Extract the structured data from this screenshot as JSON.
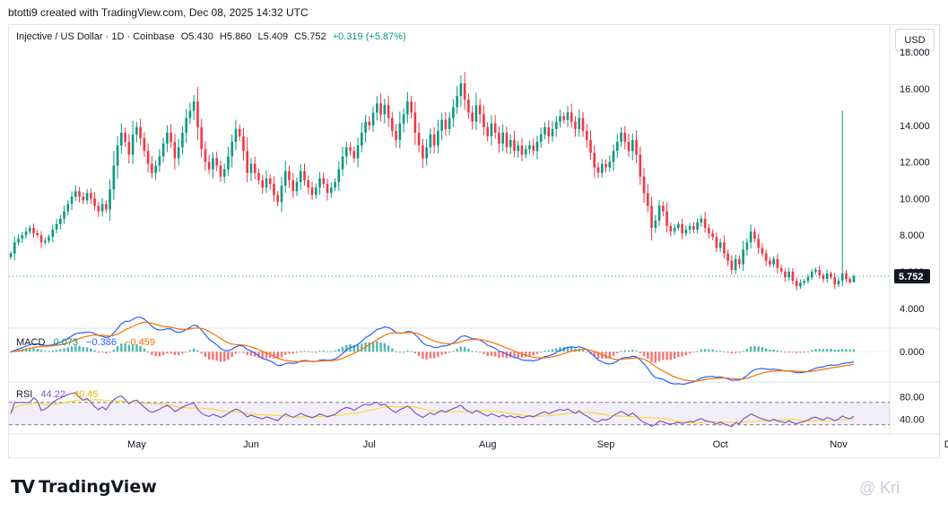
{
  "header": {
    "credit": "btotti9 created with TradingView.com, Dec 08, 2025 14:32 UTC"
  },
  "legend": {
    "symbol": "Injective / US Dollar · 1D · Coinbase",
    "open": "O5.430",
    "high": "H5.860",
    "low": "L5.409",
    "close": "C5.752",
    "change": "+0.319 (+5.87%)"
  },
  "currency_button": "USD",
  "macd_legend": {
    "label": "MACD",
    "v1": "0.073",
    "v2": "−0.386",
    "v3": "−0.459"
  },
  "rsi_legend": {
    "label": "RSI",
    "v1": "44.22",
    "v2": "40.45"
  },
  "footer": {
    "brand": "TradingView",
    "watermark": "@ Kri"
  },
  "colors": {
    "up": "#089981",
    "down": "#f23645",
    "macd": "#2962ff",
    "signal": "#ff6d00",
    "rsi": "#7e57c2",
    "rsi_ma": "#fdd835"
  },
  "chart_data": [
    {
      "type": "candlestick",
      "title": "Injective / US Dollar · 1D · Coinbase",
      "y_ticks": [
        4,
        6,
        8,
        10,
        12,
        14,
        16,
        18
      ],
      "y_tick_labels": [
        "4.000",
        "6.000",
        "8.000",
        "10.000",
        "12.000",
        "14.000",
        "16.000",
        "18.000"
      ],
      "ylim": [
        3.6,
        18.4
      ],
      "x_tick_labels": [
        "May",
        "Jun",
        "Jul",
        "Aug",
        "Sep",
        "Oct",
        "Nov",
        "Dec"
      ],
      "x_tick_index": [
        33,
        63,
        94,
        125,
        156,
        186,
        217,
        247
      ],
      "last_price": 5.752,
      "last_price_label": "5.752",
      "closes": [
        7.0,
        7.6,
        7.8,
        8.0,
        8.2,
        8.4,
        8.1,
        8.0,
        7.6,
        7.7,
        7.9,
        8.3,
        8.6,
        8.9,
        9.3,
        9.7,
        10.1,
        10.4,
        10.1,
        9.9,
        10.3,
        10.0,
        9.6,
        9.3,
        9.7,
        9.4,
        10.5,
        11.8,
        12.9,
        13.6,
        13.1,
        12.4,
        13.5,
        13.9,
        13.3,
        12.6,
        11.9,
        11.4,
        11.8,
        12.3,
        13.0,
        13.6,
        13.1,
        12.2,
        12.8,
        13.6,
        14.4,
        14.8,
        15.3,
        13.9,
        12.7,
        12.0,
        11.6,
        12.2,
        11.8,
        11.2,
        11.6,
        12.3,
        13.1,
        13.8,
        13.4,
        12.6,
        11.4,
        11.9,
        11.4,
        11.0,
        10.6,
        11.1,
        10.8,
        10.2,
        9.8,
        10.7,
        11.5,
        11.0,
        10.4,
        10.9,
        11.5,
        11.0,
        10.6,
        10.2,
        10.6,
        11.1,
        10.8,
        10.3,
        10.6,
        10.9,
        11.6,
        12.3,
        12.8,
        12.6,
        12.2,
        12.9,
        13.6,
        14.2,
        14.0,
        14.7,
        15.2,
        14.6,
        15.1,
        14.4,
        13.7,
        13.2,
        14.1,
        14.6,
        15.3,
        14.7,
        13.6,
        12.9,
        12.2,
        12.8,
        13.5,
        12.9,
        13.7,
        14.3,
        13.8,
        14.4,
        15.0,
        15.6,
        16.3,
        15.4,
        14.7,
        14.2,
        15.1,
        14.6,
        13.9,
        13.4,
        14.1,
        13.6,
        13.0,
        13.6,
        12.8,
        13.2,
        12.6,
        12.9,
        12.4,
        12.7,
        12.9,
        12.6,
        13.1,
        13.5,
        13.9,
        13.4,
        13.8,
        14.2,
        14.5,
        14.3,
        14.7,
        14.2,
        13.8,
        14.4,
        13.7,
        13.2,
        12.5,
        11.7,
        11.4,
        11.9,
        11.7,
        12.0,
        12.6,
        13.1,
        13.6,
        13.1,
        12.6,
        13.2,
        12.4,
        11.2,
        10.3,
        9.6,
        8.4,
        8.8,
        9.6,
        9.3,
        8.5,
        8.2,
        8.4,
        8.6,
        8.1,
        8.3,
        8.5,
        8.3,
        8.7,
        8.9,
        8.4,
        8.1,
        7.9,
        7.3,
        7.6,
        7.0,
        6.6,
        6.1,
        6.7,
        6.4,
        7.2,
        7.6,
        8.2,
        7.8,
        7.3,
        7.0,
        6.6,
        6.4,
        6.7,
        6.2,
        6.0,
        5.7,
        6.0,
        5.5,
        5.2,
        5.4,
        5.5,
        5.7,
        6.0,
        6.1,
        5.8,
        5.6,
        5.9,
        5.7,
        5.3,
        5.5,
        5.9,
        5.6,
        5.43,
        5.75
      ],
      "rsi_ylim": [
        20,
        100
      ],
      "rsi_y_ticks": [
        40,
        80
      ],
      "rsi_y_tick_labels": [
        "40.00",
        "80.00"
      ],
      "macd_ylim": [
        -1.1,
        0.7
      ],
      "macd_y_ticks": [
        0
      ],
      "macd_y_tick_labels": [
        "0.000"
      ],
      "notable": {
        "spike_bar_index": 218,
        "spike_high": 14.8
      }
    }
  ]
}
